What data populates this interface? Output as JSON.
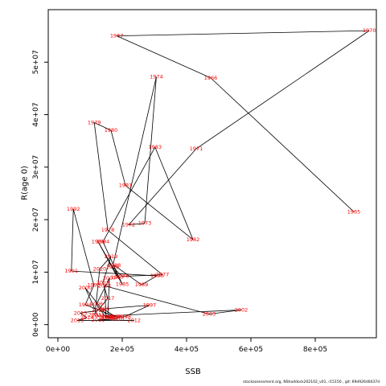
{
  "chart_data": {
    "type": "line",
    "xlabel": "SSB",
    "ylabel": "R(age 0)",
    "xlim": [
      -30000,
      990000
    ],
    "ylim": [
      -2500000,
      60000000
    ],
    "x_ticks": [
      0,
      200000,
      400000,
      600000,
      800000
    ],
    "x_tick_labels": [
      "0e+00",
      "2e+05",
      "4e+05",
      "6e+05",
      "8e+05"
    ],
    "y_ticks": [
      0,
      10000000,
      20000000,
      30000000,
      40000000,
      50000000
    ],
    "y_tick_labels": [
      "0e+00",
      "1e+07",
      "2e+07",
      "3e+07",
      "4e+07",
      "5e+07"
    ],
    "grid": false,
    "line_color": "#000000",
    "label_color": "#ff0000",
    "points": [
      {
        "label": "1965",
        "x": 920000,
        "y": 21500000
      },
      {
        "label": "1966",
        "x": 475000,
        "y": 47000000
      },
      {
        "label": "1967",
        "x": 183000,
        "y": 55000000
      },
      {
        "label": "1970",
        "x": 968000,
        "y": 56000000
      },
      {
        "label": "1971",
        "x": 430000,
        "y": 33500000
      },
      {
        "label": "1972",
        "x": 220000,
        "y": 19000000
      },
      {
        "label": "1973",
        "x": 270000,
        "y": 19300000
      },
      {
        "label": "1974",
        "x": 306000,
        "y": 47200000
      },
      {
        "label": "1975",
        "x": 170000,
        "y": 11000000
      },
      {
        "label": "1976",
        "x": 200000,
        "y": 9200000
      },
      {
        "label": "1977",
        "x": 325000,
        "y": 9500000
      },
      {
        "label": "1978",
        "x": 155000,
        "y": 18000000
      },
      {
        "label": "1979",
        "x": 113000,
        "y": 38500000
      },
      {
        "label": "1980",
        "x": 165000,
        "y": 37000000
      },
      {
        "label": "1981",
        "x": 210000,
        "y": 26500000
      },
      {
        "label": "1982",
        "x": 420000,
        "y": 16200000
      },
      {
        "label": "1983",
        "x": 302000,
        "y": 33800000
      },
      {
        "label": "1984",
        "x": 140000,
        "y": 15800000
      },
      {
        "label": "1985",
        "x": 200000,
        "y": 7700000
      },
      {
        "label": "1986",
        "x": 125000,
        "y": 15800000
      },
      {
        "label": "1987",
        "x": 185000,
        "y": 9000000
      },
      {
        "label": "1988",
        "x": 175000,
        "y": 11300000
      },
      {
        "label": "1989",
        "x": 260000,
        "y": 7600000
      },
      {
        "label": "1990",
        "x": 308000,
        "y": 9300000
      },
      {
        "label": "1991",
        "x": 42000,
        "y": 10200000
      },
      {
        "label": "1992",
        "x": 48000,
        "y": 22000000
      },
      {
        "label": "1993",
        "x": 112000,
        "y": 7500000
      },
      {
        "label": "1994",
        "x": 85000,
        "y": 3800000
      },
      {
        "label": "1995",
        "x": 180000,
        "y": 1500000
      },
      {
        "label": "1996",
        "x": 140000,
        "y": 3000000
      },
      {
        "label": "1997",
        "x": 285000,
        "y": 3700000
      },
      {
        "label": "1998",
        "x": 207000,
        "y": 1500000
      },
      {
        "label": "1999",
        "x": 155000,
        "y": 1500000
      },
      {
        "label": "2000",
        "x": 85000,
        "y": 7000000
      },
      {
        "label": "2001",
        "x": 125000,
        "y": 1600000
      },
      {
        "label": "2002",
        "x": 570000,
        "y": 2800000
      },
      {
        "label": "2003",
        "x": 470000,
        "y": 2000000
      },
      {
        "label": "2004",
        "x": 145000,
        "y": 7400000
      },
      {
        "label": "2005",
        "x": 150000,
        "y": 1300000
      },
      {
        "label": "2006",
        "x": 120000,
        "y": 3900000
      },
      {
        "label": "2007",
        "x": 160000,
        "y": 8800000
      },
      {
        "label": "2008",
        "x": 155000,
        "y": 1300000
      },
      {
        "label": "2009",
        "x": 185000,
        "y": 1500000
      },
      {
        "label": "2010",
        "x": 185000,
        "y": 1100000
      },
      {
        "label": "2011",
        "x": 125000,
        "y": 900000
      },
      {
        "label": "2012",
        "x": 237000,
        "y": 800000
      },
      {
        "label": "2013",
        "x": 60000,
        "y": 800000
      },
      {
        "label": "2014",
        "x": 90000,
        "y": 1300000
      },
      {
        "label": "2015",
        "x": 70000,
        "y": 2200000
      },
      {
        "label": "2016",
        "x": 125000,
        "y": 2700000
      },
      {
        "label": "2017",
        "x": 155000,
        "y": 5000000
      },
      {
        "label": "2018",
        "x": 140000,
        "y": 8000000
      },
      {
        "label": "2019",
        "x": 165000,
        "y": 13000000
      },
      {
        "label": "2020",
        "x": 130000,
        "y": 10600000
      },
      {
        "label": "2021",
        "x": 115000,
        "y": 1900000
      }
    ]
  },
  "footer": "stockassessment.org, NShaddock202102_v01, r15150 , git: 69d926d0437d"
}
